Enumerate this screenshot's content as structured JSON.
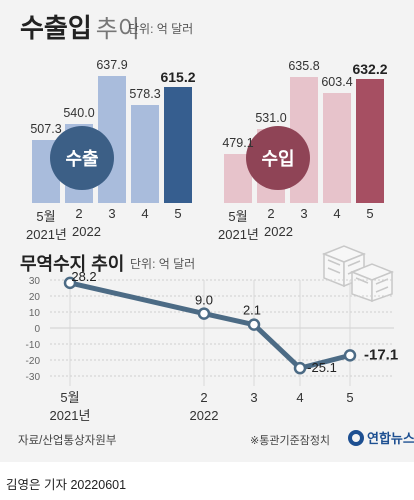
{
  "header": {
    "title": "수출입",
    "title_sub": "추이",
    "unit": "단위: 억 달러"
  },
  "chart_data": [
    {
      "type": "bar",
      "label": "수출",
      "categories": [
        "5월",
        "2",
        "3",
        "4",
        "5"
      ],
      "year_labels": [
        "2021년",
        "2022"
      ],
      "values": [
        507.3,
        540.0,
        637.9,
        578.3,
        615.2
      ],
      "value_labels": [
        "507.3",
        "540.0",
        "637.9",
        "578.3",
        "615.2"
      ],
      "colors": [
        "#a9bcdc",
        "#a9bcdc",
        "#a9bcdc",
        "#a9bcdc",
        "#365e8f"
      ]
    },
    {
      "type": "bar",
      "label": "수입",
      "categories": [
        "5월",
        "2",
        "3",
        "4",
        "5"
      ],
      "year_labels": [
        "2021년",
        "2022"
      ],
      "values": [
        479.1,
        531.0,
        635.8,
        603.4,
        632.2
      ],
      "value_labels": [
        "479.1",
        "531.0",
        "635.8",
        "603.4",
        "632.2"
      ],
      "colors": [
        "#e7c3cb",
        "#e7c3cb",
        "#e7c3cb",
        "#e7c3cb",
        "#a64f62"
      ]
    },
    {
      "type": "line",
      "title": "무역수지 추이",
      "unit": "단위: 억 달러",
      "categories": [
        "5월",
        "2",
        "3",
        "4",
        "5"
      ],
      "year_labels": [
        "2021년",
        "2022"
      ],
      "values": [
        28.2,
        9.0,
        2.1,
        -25.1,
        -17.1
      ],
      "value_labels": [
        "28.2",
        "9.0",
        "2.1",
        "-25.1",
        "-17.1"
      ],
      "yticks": [
        30,
        20,
        10,
        0,
        -10,
        -20,
        -30
      ],
      "ylim": [
        -30,
        30
      ],
      "line_color": "#4c6b85",
      "grid": true
    }
  ],
  "footer": {
    "source": "자료/산업통상자원부",
    "note": "※통관기준잠정치",
    "logo": "연합뉴스",
    "byline": "김영은 기자  20220601"
  }
}
